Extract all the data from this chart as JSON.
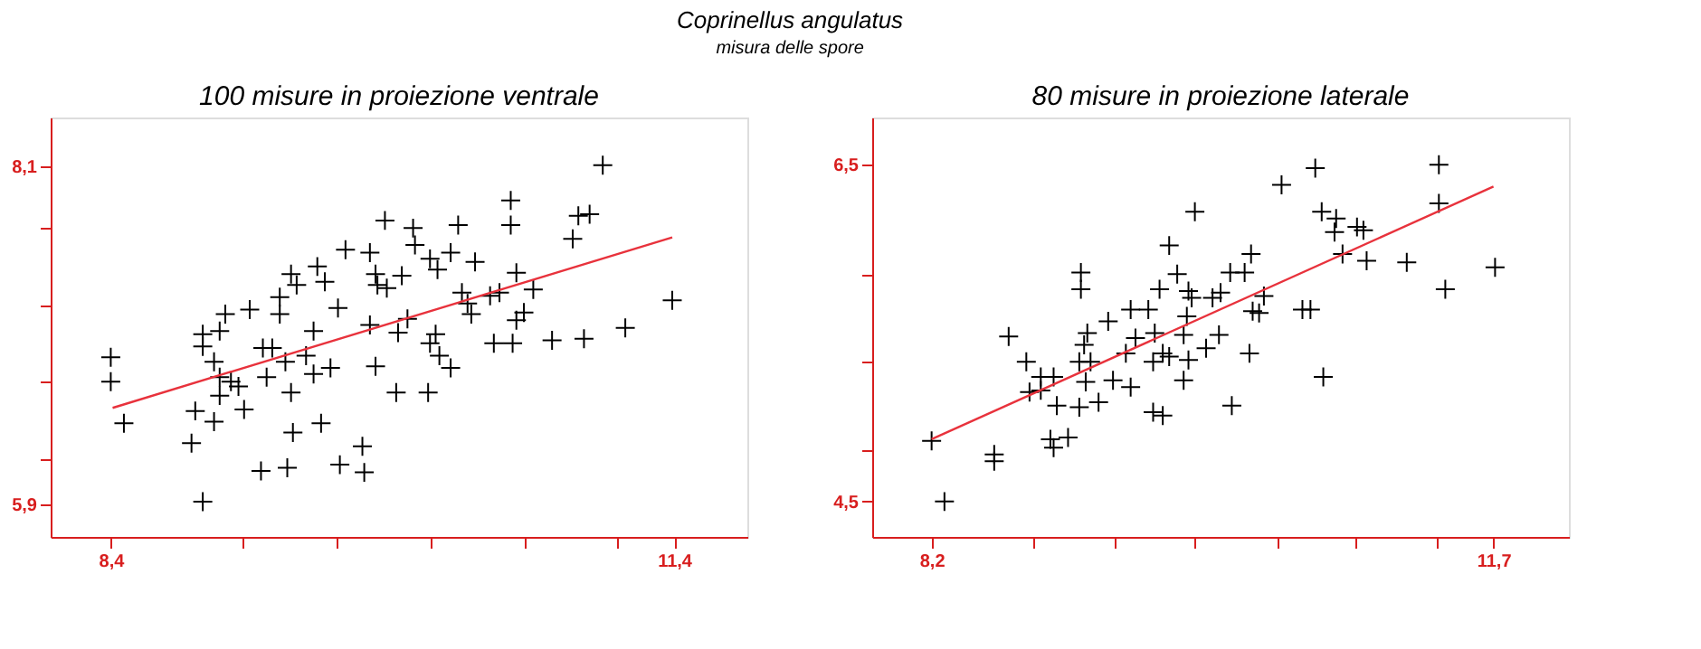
{
  "chart_data": [
    {
      "type": "scatter",
      "title": "100 misure in proiezione ventrale",
      "annotations": [
        "Coprinellus angulatus",
        "misura delle spore"
      ],
      "marker": "cross",
      "xlim": [
        8.08,
        11.79
      ],
      "ylim": [
        5.69,
        8.42
      ],
      "xticks": [
        {
          "value": 8.4,
          "label": "8,4"
        },
        {
          "value": 9.1,
          "label": null
        },
        {
          "value": 9.6,
          "label": null
        },
        {
          "value": 10.1,
          "label": null
        },
        {
          "value": 10.6,
          "label": null
        },
        {
          "value": 11.1,
          "label": null
        },
        {
          "value": 11.4,
          "label": "11,4"
        }
      ],
      "yticks": [
        {
          "value": 5.9,
          "label": "5,9"
        },
        {
          "value": 6.2,
          "label": null
        },
        {
          "value": 6.7,
          "label": null
        },
        {
          "value": 7.2,
          "label": null
        },
        {
          "value": 7.7,
          "label": null
        },
        {
          "value": 8.1,
          "label": "8,1"
        }
      ],
      "series": [
        {
          "color": "#000000",
          "x": [
            8.4,
            8.4,
            8.47,
            8.83,
            8.89,
            8.85,
            8.95,
            8.89,
            8.98,
            9.01,
            9.14,
            9.3,
            9.36,
            9.39,
            9.5,
            9.54,
            9.65,
            9.78,
            9.61,
            9.48,
            9.21,
            9.26,
            9.33,
            9.44,
            9.48,
            9.57,
            9.23,
            9.36,
            9.08,
            9.04,
            8.98,
            9.11,
            8.95,
            8.98,
            8.89,
            9.37,
            9.52,
            9.2,
            9.34,
            9.62,
            9.75,
            9.74,
            9.81,
            9.78,
            9.82,
            9.3,
            9.86,
            10.01,
            10.25,
            10.53,
            10.53,
            11.02,
            10.89,
            10.95,
            10.86,
            10.02,
            10.1,
            10.21,
            10.34,
            10.14,
            9.95,
            9.81,
            9.87,
            10.56,
            10.65,
            10.27,
            10.42,
            10.3,
            10.47,
            10.32,
            10.56,
            10.6,
            9.98,
            9.93,
            10.13,
            10.1,
            10.15,
            10.21,
            10.44,
            10.54,
            10.75,
            10.92,
            11.14,
            11.39,
            9.92,
            10.09
          ],
          "values": [
            6.86,
            6.7,
            6.43,
            6.3,
            5.92,
            6.51,
            6.44,
            7.01,
            7.03,
            7.14,
            7.17,
            7.14,
            7.4,
            7.33,
            7.45,
            7.35,
            7.56,
            7.54,
            7.18,
            7.03,
            6.92,
            6.92,
            6.83,
            6.87,
            6.75,
            6.79,
            6.73,
            6.63,
            6.67,
            6.7,
            6.61,
            6.52,
            6.83,
            6.73,
            6.93,
            6.37,
            6.43,
            6.12,
            6.14,
            6.16,
            6.11,
            6.28,
            6.8,
            7.07,
            7.33,
            7.25,
            7.75,
            7.7,
            7.72,
            7.88,
            7.72,
            8.11,
            7.78,
            7.79,
            7.63,
            7.59,
            7.5,
            7.54,
            7.48,
            7.43,
            7.39,
            7.4,
            7.31,
            7.41,
            7.3,
            7.28,
            7.26,
            7.21,
            7.28,
            7.14,
            7.1,
            7.15,
            7.11,
            7.02,
            7.01,
            6.95,
            6.87,
            6.79,
            6.95,
            6.95,
            6.97,
            6.98,
            7.05,
            7.23,
            6.63,
            6.63
          ]
        },
        {
          "type": "line",
          "marker": "none",
          "line_style": "solid",
          "color": "#e8323c",
          "x": [
            8.41,
            11.39
          ],
          "values": [
            6.53,
            7.64
          ]
        }
      ]
    },
    {
      "type": "scatter",
      "title": "80 misure in proiezione laterale",
      "marker": "cross",
      "xlim": [
        7.83,
        12.17
      ],
      "ylim": [
        4.29,
        6.78
      ],
      "xticks": [
        {
          "value": 8.2,
          "label": "8,2"
        },
        {
          "value": 8.83,
          "label": null
        },
        {
          "value": 9.34,
          "label": null
        },
        {
          "value": 9.84,
          "label": null
        },
        {
          "value": 10.35,
          "label": null
        },
        {
          "value": 10.84,
          "label": null
        },
        {
          "value": 11.35,
          "label": null
        },
        {
          "value": 11.7,
          "label": "11,7"
        }
      ],
      "yticks": [
        {
          "value": 4.5,
          "label": "4,5"
        },
        {
          "value": 4.8,
          "label": null
        },
        {
          "value": 5.33,
          "label": null
        },
        {
          "value": 5.85,
          "label": null
        },
        {
          "value": 6.5,
          "label": "6,5"
        }
      ],
      "series": [
        {
          "color": "#000000",
          "x": [
            8.2,
            8.28,
            8.59,
            8.59,
            8.94,
            9.05,
            8.96,
            8.68,
            8.79,
            8.81,
            8.88,
            8.88,
            8.96,
            8.98,
            9.13,
            9.13,
            9.17,
            9.15,
            9.12,
            9.19,
            9.16,
            9.12,
            9.24,
            9.3,
            9.33,
            9.44,
            9.41,
            9.47,
            9.44,
            9.55,
            9.59,
            9.58,
            9.64,
            9.68,
            9.58,
            9.64,
            9.77,
            9.8,
            9.77,
            9.79,
            9.62,
            9.73,
            9.8,
            9.82,
            9.68,
            9.84,
            9.95,
            9.91,
            9.99,
            10.38,
            10.59,
            10.63,
            10.72,
            10.71,
            10.85,
            10.89,
            10.76,
            10.91,
            11.16,
            11.36,
            11.36,
            11.4,
            11.71,
            10.19,
            10.06,
            10.15,
            10.0,
            10.27,
            10.2,
            10.24,
            10.51,
            10.56,
            10.18,
            10.64,
            10.07
          ],
          "values": [
            4.86,
            4.5,
            4.78,
            4.74,
            4.87,
            4.88,
            4.82,
            5.48,
            5.33,
            5.15,
            5.16,
            5.24,
            5.24,
            5.07,
            5.86,
            5.76,
            5.5,
            5.43,
            5.33,
            5.33,
            5.21,
            5.06,
            5.09,
            5.57,
            5.22,
            5.18,
            5.38,
            5.47,
            5.64,
            5.64,
            5.5,
            5.33,
            5.38,
            5.36,
            5.03,
            5.01,
            5.22,
            5.34,
            5.49,
            5.6,
            5.76,
            5.85,
            5.75,
            5.71,
            6.02,
            6.22,
            5.71,
            5.41,
            5.49,
            6.38,
            6.48,
            6.22,
            6.18,
            6.1,
            6.13,
            6.11,
            5.97,
            5.93,
            5.92,
            6.5,
            6.27,
            5.76,
            5.89,
            5.97,
            5.86,
            5.86,
            5.74,
            5.72,
            5.63,
            5.62,
            5.64,
            5.64,
            5.38,
            5.24,
            5.07
          ]
        },
        {
          "type": "line",
          "marker": "none",
          "line_style": "solid",
          "color": "#e8323c",
          "x": [
            8.2,
            11.7
          ],
          "values": [
            4.87,
            6.37
          ]
        }
      ]
    }
  ]
}
